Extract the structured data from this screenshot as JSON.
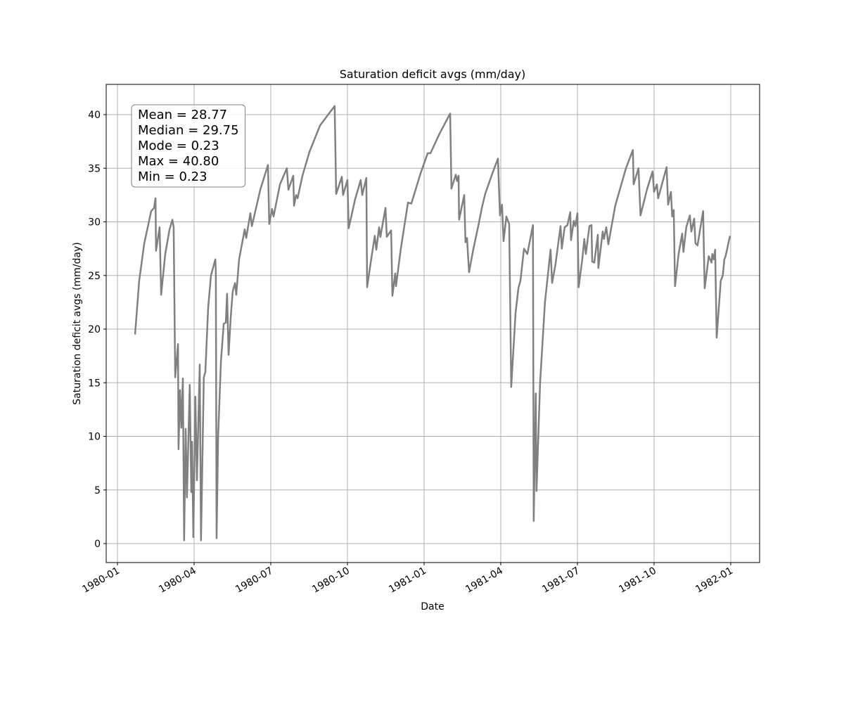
{
  "chart_data": {
    "type": "line",
    "title": "Saturation deficit avgs (mm/day)",
    "x_label": "Date",
    "y_label": "Saturation deficit avgs (mm/day)",
    "annotations": [
      "Mean = 28.77",
      "Median = 29.75",
      "Mode = 0.23",
      "Max = 40.80",
      "Min = 0.23"
    ],
    "color": "#808080",
    "grid": true,
    "xlim": [
      -0.44,
      25.13
    ],
    "ylim": [
      -1.77,
      42.82
    ],
    "xticks": [
      {
        "value": 0,
        "label": "1980-01"
      },
      {
        "value": 3,
        "label": "1980-04"
      },
      {
        "value": 6,
        "label": "1980-07"
      },
      {
        "value": 9,
        "label": "1980-10"
      },
      {
        "value": 12,
        "label": "1981-01"
      },
      {
        "value": 15,
        "label": "1981-04"
      },
      {
        "value": 18,
        "label": "1981-07"
      },
      {
        "value": 21,
        "label": "1981-10"
      },
      {
        "value": 24,
        "label": "1982-01"
      }
    ],
    "yticks": [
      0,
      5,
      10,
      15,
      20,
      25,
      30,
      35,
      40
    ],
    "x": [
      0.69,
      0.85,
      1.05,
      1.32,
      1.43,
      1.49,
      1.51,
      1.65,
      1.71,
      1.87,
      2.04,
      2.15,
      2.2,
      2.26,
      2.37,
      2.39,
      2.45,
      2.5,
      2.56,
      2.61,
      2.67,
      2.72,
      2.83,
      2.89,
      2.92,
      2.97,
      3.05,
      3.11,
      3.22,
      3.27,
      3.38,
      3.44,
      3.55,
      3.66,
      3.83,
      3.85,
      3.88,
      3.94,
      4.05,
      4.16,
      4.24,
      4.29,
      4.35,
      4.43,
      4.51,
      4.6,
      4.65,
      4.76,
      4.98,
      5.04,
      5.2,
      5.26,
      5.59,
      5.89,
      5.94,
      6.05,
      6.11,
      6.36,
      6.63,
      6.69,
      6.88,
      6.91,
      6.99,
      7.05,
      7.24,
      7.51,
      7.93,
      8.5,
      8.56,
      8.78,
      8.83,
      9.0,
      9.05,
      9.3,
      9.52,
      9.58,
      9.74,
      9.77,
      9.88,
      10.07,
      10.13,
      10.24,
      10.29,
      10.49,
      10.54,
      10.71,
      10.76,
      10.87,
      10.9,
      11.09,
      11.37,
      11.5,
      11.86,
      12.14,
      12.25,
      12.6,
      13.02,
      13.07,
      13.24,
      13.29,
      13.35,
      13.37,
      13.57,
      13.62,
      13.68,
      13.76,
      13.93,
      14.12,
      14.26,
      14.39,
      14.67,
      14.89,
      14.97,
      15.05,
      15.11,
      15.22,
      15.33,
      15.41,
      15.58,
      15.69,
      15.77,
      15.91,
      16.04,
      16.26,
      16.29,
      16.37,
      16.4,
      16.54,
      16.73,
      16.95,
      17.01,
      17.14,
      17.34,
      17.39,
      17.5,
      17.61,
      17.72,
      17.75,
      17.86,
      17.92,
      18.0,
      18.05,
      18.19,
      18.27,
      18.33,
      18.47,
      18.55,
      18.58,
      18.66,
      18.8,
      18.82,
      18.99,
      19.04,
      19.13,
      19.21,
      19.48,
      19.9,
      20.17,
      20.2,
      20.39,
      20.47,
      20.72,
      20.94,
      21.0,
      21.11,
      21.16,
      21.49,
      21.55,
      21.66,
      21.71,
      21.77,
      21.82,
      21.96,
      22.1,
      22.15,
      22.26,
      22.4,
      22.46,
      22.57,
      22.62,
      22.7,
      22.92,
      22.98,
      23.14,
      23.25,
      23.28,
      23.34,
      23.39,
      23.45,
      23.61,
      23.69,
      23.75,
      23.8,
      23.97
    ],
    "values": [
      19.5,
      24.5,
      28,
      31,
      31.3,
      32.2,
      27.3,
      29.5,
      23.2,
      27,
      29.3,
      30.2,
      29.5,
      15.5,
      18.6,
      8.8,
      14.3,
      10.8,
      15.4,
      0.3,
      10.7,
      4.3,
      14.8,
      4.8,
      9.5,
      0.6,
      13.7,
      5.9,
      16.7,
      0.3,
      15.5,
      16,
      22,
      25,
      26.5,
      25.5,
      0.5,
      10,
      17,
      20.5,
      20.6,
      23.3,
      17.6,
      21,
      23.5,
      24.3,
      23.2,
      26.5,
      29.3,
      28.5,
      30.8,
      29.6,
      33,
      35.3,
      29.8,
      31.2,
      30.5,
      33.5,
      35,
      33,
      34.3,
      31.5,
      32.5,
      32.2,
      34.3,
      36.5,
      39,
      40.8,
      32.6,
      34.2,
      32.5,
      33.9,
      29.4,
      32.1,
      33.9,
      32.5,
      34.1,
      23.9,
      25.7,
      28.7,
      27.4,
      29.5,
      28.6,
      31.3,
      28.6,
      29.2,
      23.1,
      25.2,
      24,
      27.5,
      31.8,
      31.7,
      34.5,
      36.4,
      36.4,
      38.2,
      40.1,
      33.1,
      34.4,
      33.8,
      34.3,
      30.2,
      32.5,
      28.1,
      28.5,
      25.3,
      27.5,
      29.6,
      31.3,
      32.6,
      34.5,
      35.9,
      30.6,
      31.6,
      28.2,
      30.5,
      29.8,
      14.6,
      21.5,
      23.8,
      24.5,
      27.5,
      27,
      29.7,
      2.1,
      14,
      4.9,
      15,
      22.5,
      27.4,
      24.3,
      26,
      29.6,
      27.5,
      29.5,
      29.7,
      30.9,
      28.3,
      30.1,
      29.6,
      30.8,
      23.9,
      26.5,
      28.4,
      27,
      29.6,
      29.7,
      26.3,
      26.2,
      28.8,
      25.7,
      29.1,
      28.4,
      29.5,
      27.9,
      31.5,
      35,
      36.7,
      33.5,
      35,
      30.6,
      33,
      34.7,
      32.8,
      33.5,
      32.2,
      35.1,
      31.6,
      32.8,
      30.5,
      31.1,
      24,
      27,
      28.9,
      27.2,
      29.5,
      30.6,
      29.1,
      30.3,
      28,
      27.8,
      31,
      23.8,
      26.8,
      26.2,
      27,
      26.5,
      27.4,
      19.2,
      24.5,
      25,
      26.5,
      26.8,
      28.7
    ]
  }
}
